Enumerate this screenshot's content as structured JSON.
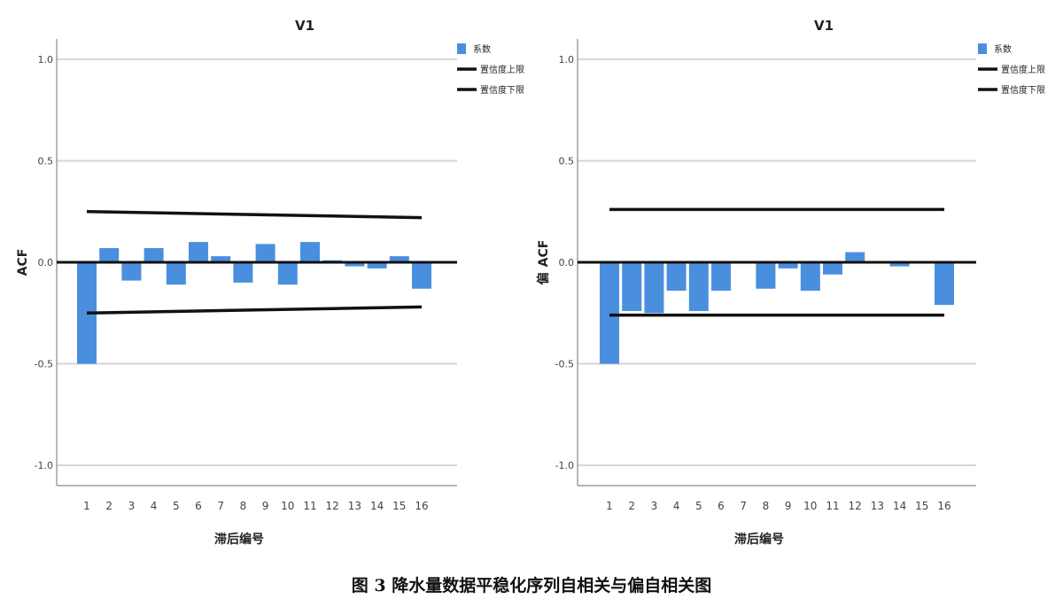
{
  "caption": "图 3 降水量数据平稳化序列自相关与偏自相关图",
  "chart_data": [
    {
      "type": "bar",
      "title": "V1",
      "xlabel": "滞后编号",
      "ylabel": "ACF",
      "ylim": [
        -1.1,
        1.1
      ],
      "yticks": [
        1.0,
        0.5,
        0.0,
        -0.5,
        -1.0
      ],
      "ytick_labels": [
        "1.0",
        "0.5",
        "0.0",
        "-0.5",
        "-1.0"
      ],
      "grid": true,
      "legend_position": "top-right",
      "categories": [
        "1",
        "2",
        "3",
        "4",
        "5",
        "6",
        "7",
        "8",
        "9",
        "10",
        "11",
        "12",
        "13",
        "14",
        "15",
        "16"
      ],
      "series": [
        {
          "name": "系数",
          "kind": "bar",
          "color": "#4a8fde",
          "values": [
            -0.5,
            0.07,
            -0.09,
            0.07,
            -0.11,
            0.1,
            0.03,
            -0.1,
            0.09,
            -0.11,
            0.1,
            0.01,
            -0.02,
            -0.03,
            0.03,
            -0.13
          ]
        },
        {
          "name": "置信度上限",
          "kind": "line",
          "color": "#111111",
          "x": [
            1,
            16
          ],
          "values": [
            0.25,
            0.22
          ]
        },
        {
          "name": "置信度下限",
          "kind": "line",
          "color": "#111111",
          "x": [
            1,
            16
          ],
          "values": [
            -0.25,
            -0.22
          ]
        }
      ]
    },
    {
      "type": "bar",
      "title": "V1",
      "xlabel": "滞后编号",
      "ylabel_parts": [
        "偏",
        "ACF"
      ],
      "ylim": [
        -1.1,
        1.1
      ],
      "yticks": [
        1.0,
        0.5,
        0.0,
        -0.5,
        -1.0
      ],
      "ytick_labels": [
        "1.0",
        "0.5",
        "0.0",
        "-0.5",
        "-1.0"
      ],
      "grid": true,
      "legend_position": "top-right",
      "categories": [
        "1",
        "2",
        "3",
        "4",
        "5",
        "6",
        "7",
        "8",
        "9",
        "10",
        "11",
        "12",
        "13",
        "14",
        "15",
        "16"
      ],
      "series": [
        {
          "name": "系数",
          "kind": "bar",
          "color": "#4a8fde",
          "values": [
            -0.5,
            -0.24,
            -0.25,
            -0.14,
            -0.24,
            -0.14,
            0.0,
            -0.13,
            -0.03,
            -0.14,
            -0.06,
            0.05,
            0.0,
            -0.02,
            0.0,
            -0.21
          ]
        },
        {
          "name": "置信度上限",
          "kind": "line",
          "color": "#111111",
          "x": [
            1,
            16
          ],
          "values": [
            0.26,
            0.26
          ]
        },
        {
          "name": "置信度下限",
          "kind": "line",
          "color": "#111111",
          "x": [
            1,
            16
          ],
          "values": [
            -0.26,
            -0.26
          ]
        }
      ]
    }
  ]
}
